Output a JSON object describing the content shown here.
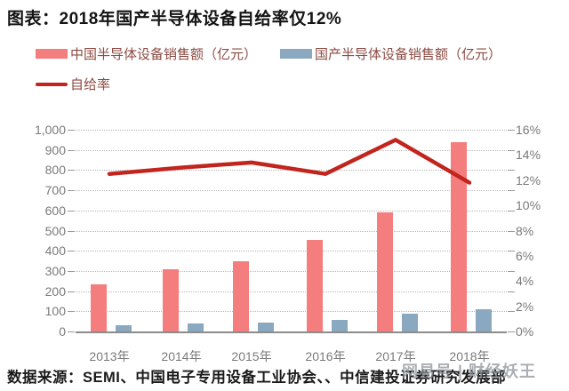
{
  "title": "图表：2018年国产半导体设备自给率仅12%",
  "legend": {
    "items": [
      {
        "label": "中国半导体设备销售额（亿元）",
        "swatch": "bar",
        "color": "#f47d7d"
      },
      {
        "label": "国产半导体设备销售额（亿元）",
        "swatch": "bar",
        "color": "#8aa8c0"
      },
      {
        "label": "自给率",
        "swatch": "line",
        "color": "#c1251d"
      }
    ],
    "text_color": "#8c4a42"
  },
  "footer": {
    "source": "数据来源：SEMI、中国电子专用设备工业协会、、中信建投证券研究发展部",
    "watermark": "网易号 | 财经妖王"
  },
  "chart_data": {
    "type": "bar",
    "subtype": "combo-bar-line-dual-axis",
    "categories": [
      "2013年",
      "2014年",
      "2015年",
      "2016年",
      "2017年",
      "2018年"
    ],
    "series": [
      {
        "name": "中国半导体设备销售额（亿元）",
        "type": "bar",
        "axis": "left",
        "color": "#f47d7d",
        "values": [
          232,
          310,
          350,
          455,
          590,
          940
        ]
      },
      {
        "name": "国产半导体设备销售额（亿元）",
        "type": "bar",
        "axis": "left",
        "color": "#8aa8c0",
        "values": [
          29,
          40,
          46,
          57,
          89,
          109
        ]
      },
      {
        "name": "自给率",
        "type": "line",
        "axis": "right",
        "color": "#c1251d",
        "values_percent": [
          12.5,
          13.0,
          13.4,
          12.5,
          15.2,
          11.8
        ]
      }
    ],
    "left_axis": {
      "min": 0,
      "max": 1000,
      "step": 100,
      "tick_labels": [
        "1,000",
        "900",
        "800",
        "700",
        "600",
        "500",
        "400",
        "300",
        "200",
        "100",
        "0"
      ]
    },
    "right_axis": {
      "min": 0,
      "max": 16,
      "step": 2,
      "tick_labels": [
        "16%",
        "14%",
        "12%",
        "10%",
        "8%",
        "6%",
        "4%",
        "2%",
        "0%"
      ]
    },
    "grid": true,
    "legend_position": "top-left",
    "title": "图表：2018年国产半导体设备自给率仅12%"
  }
}
